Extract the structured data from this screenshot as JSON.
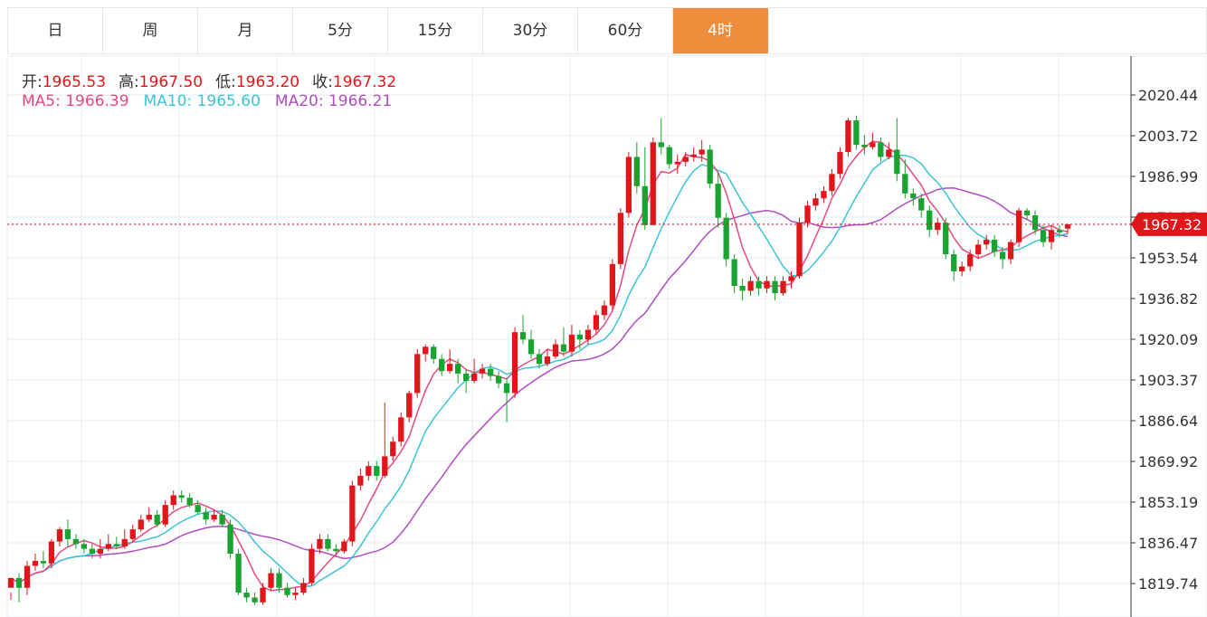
{
  "tabs": [
    {
      "label": "日",
      "active": false
    },
    {
      "label": "周",
      "active": false
    },
    {
      "label": "月",
      "active": false
    },
    {
      "label": "5分",
      "active": false
    },
    {
      "label": "15分",
      "active": false
    },
    {
      "label": "30分",
      "active": false
    },
    {
      "label": "60分",
      "active": false
    },
    {
      "label": "4时",
      "active": true
    }
  ],
  "info": {
    "open_label": "开:",
    "open": "1965.53",
    "high_label": "高:",
    "high": "1967.50",
    "low_label": "低:",
    "low": "1963.20",
    "close_label": "收:",
    "close": "1967.32",
    "ma5": "MA5: 1966.39",
    "ma10": "MA10: 1965.60",
    "ma20": "MA20: 1966.21"
  },
  "colors": {
    "up": "#e0161a",
    "down": "#1aa331",
    "ma5": "#e84a7f",
    "ma10": "#3cc4d6",
    "ma20": "#b04dc2",
    "accent": "#f08d3d",
    "grid": "#e6ecf2",
    "price_line": "#e0161a"
  },
  "chart_data": {
    "type": "candlestick",
    "title": "",
    "y_ticks": [
      "2020.44",
      "2003.72",
      "1986.99",
      "1970.27",
      "1953.54",
      "1936.82",
      "1920.09",
      "1903.37",
      "1886.64",
      "1869.92",
      "1853.19",
      "1836.47",
      "1819.74"
    ],
    "ylim": [
      1814,
      2030
    ],
    "last_price": "1967.32",
    "candles": [
      [
        1818,
        1822,
        1816,
        1813
      ],
      [
        1822,
        1818,
        1824,
        1812
      ],
      [
        1818,
        1827,
        1829,
        1815
      ],
      [
        1827,
        1829,
        1832,
        1825
      ],
      [
        1829,
        1828,
        1833,
        1826
      ],
      [
        1828,
        1837,
        1838,
        1826
      ],
      [
        1837,
        1842,
        1843,
        1835
      ],
      [
        1842,
        1838,
        1846,
        1835
      ],
      [
        1838,
        1836,
        1840,
        1834
      ],
      [
        1836,
        1834,
        1838,
        1832
      ],
      [
        1834,
        1832,
        1836,
        1830
      ],
      [
        1832,
        1834,
        1838,
        1830
      ],
      [
        1834,
        1836,
        1840,
        1833
      ],
      [
        1836,
        1835,
        1839,
        1834
      ],
      [
        1835,
        1838,
        1842,
        1834
      ],
      [
        1838,
        1842,
        1844,
        1837
      ],
      [
        1842,
        1846,
        1848,
        1841
      ],
      [
        1846,
        1848,
        1851,
        1845
      ],
      [
        1848,
        1844,
        1850,
        1843
      ],
      [
        1844,
        1852,
        1854,
        1843
      ],
      [
        1852,
        1856,
        1858,
        1850
      ],
      [
        1856,
        1855,
        1858,
        1853
      ],
      [
        1855,
        1852,
        1857,
        1851
      ],
      [
        1852,
        1849,
        1854,
        1848
      ],
      [
        1849,
        1846,
        1851,
        1844
      ],
      [
        1846,
        1848,
        1850,
        1845
      ],
      [
        1848,
        1844,
        1850,
        1843
      ],
      [
        1844,
        1832,
        1846,
        1830
      ],
      [
        1832,
        1816,
        1834,
        1815
      ],
      [
        1816,
        1814,
        1818,
        1812
      ],
      [
        1814,
        1812,
        1816,
        1811
      ],
      [
        1812,
        1818,
        1820,
        1811
      ],
      [
        1818,
        1824,
        1826,
        1817
      ],
      [
        1824,
        1818,
        1826,
        1816
      ],
      [
        1818,
        1815,
        1820,
        1814
      ],
      [
        1815,
        1816,
        1818,
        1813
      ],
      [
        1816,
        1820,
        1822,
        1815
      ],
      [
        1820,
        1834,
        1836,
        1819
      ],
      [
        1834,
        1838,
        1840,
        1832
      ],
      [
        1838,
        1834,
        1840,
        1833
      ],
      [
        1834,
        1833,
        1836,
        1831
      ],
      [
        1833,
        1837,
        1838,
        1832
      ],
      [
        1837,
        1860,
        1862,
        1835
      ],
      [
        1860,
        1864,
        1867,
        1858
      ],
      [
        1864,
        1868,
        1870,
        1862
      ],
      [
        1868,
        1864,
        1870,
        1862
      ],
      [
        1864,
        1872,
        1894,
        1863
      ],
      [
        1872,
        1878,
        1880,
        1870
      ],
      [
        1878,
        1888,
        1890,
        1876
      ],
      [
        1888,
        1898,
        1899,
        1886
      ],
      [
        1898,
        1914,
        1916,
        1896
      ],
      [
        1914,
        1917,
        1918,
        1911
      ],
      [
        1917,
        1912,
        1918,
        1910
      ],
      [
        1912,
        1907,
        1914,
        1905
      ],
      [
        1907,
        1910,
        1916,
        1906
      ],
      [
        1910,
        1906,
        1912,
        1902
      ],
      [
        1906,
        1903,
        1908,
        1898
      ],
      [
        1903,
        1906,
        1912,
        1902
      ],
      [
        1906,
        1908,
        1910,
        1904
      ],
      [
        1908,
        1905,
        1910,
        1903
      ],
      [
        1905,
        1902,
        1907,
        1900
      ],
      [
        1902,
        1898,
        1904,
        1886
      ],
      [
        1898,
        1923,
        1925,
        1896
      ],
      [
        1923,
        1920,
        1930,
        1918
      ],
      [
        1920,
        1914,
        1924,
        1912
      ],
      [
        1914,
        1910,
        1916,
        1908
      ],
      [
        1910,
        1913,
        1916,
        1909
      ],
      [
        1913,
        1918,
        1920,
        1912
      ],
      [
        1918,
        1915,
        1925,
        1913
      ],
      [
        1915,
        1922,
        1926,
        1913
      ],
      [
        1922,
        1920,
        1924,
        1916
      ],
      [
        1920,
        1924,
        1926,
        1918
      ],
      [
        1924,
        1930,
        1932,
        1922
      ],
      [
        1930,
        1934,
        1936,
        1928
      ],
      [
        1934,
        1951,
        1953,
        1932
      ],
      [
        1951,
        1972,
        1974,
        1949
      ],
      [
        1972,
        1995,
        1997,
        1970
      ],
      [
        1995,
        1983,
        2001,
        1980
      ],
      [
        1983,
        1967,
        1999,
        1965
      ],
      [
        1967,
        2001,
        2003,
        1968
      ],
      [
        2001,
        1999,
        2011,
        1996
      ],
      [
        1999,
        1992,
        2000,
        1990
      ],
      [
        1992,
        1993,
        1996,
        1988
      ],
      [
        1993,
        1995,
        1997,
        1991
      ],
      [
        1995,
        1996,
        1999,
        1993
      ],
      [
        1996,
        1998,
        2002,
        1993
      ],
      [
        1998,
        1984,
        2000,
        1982
      ],
      [
        1984,
        1970,
        1989,
        1966
      ],
      [
        1970,
        1953,
        1972,
        1950
      ],
      [
        1953,
        1942,
        1955,
        1939
      ],
      [
        1942,
        1940,
        1945,
        1936
      ],
      [
        1940,
        1944,
        1946,
        1938
      ],
      [
        1944,
        1941,
        1946,
        1938
      ],
      [
        1941,
        1944,
        1946,
        1939
      ],
      [
        1944,
        1939,
        1946,
        1936
      ],
      [
        1939,
        1944,
        1946,
        1938
      ],
      [
        1944,
        1946,
        1948,
        1941
      ],
      [
        1946,
        1968,
        1970,
        1945
      ],
      [
        1968,
        1975,
        1977,
        1966
      ],
      [
        1975,
        1978,
        1980,
        1973
      ],
      [
        1978,
        1981,
        1983,
        1976
      ],
      [
        1981,
        1988,
        1990,
        1979
      ],
      [
        1988,
        1997,
        1999,
        1986
      ],
      [
        1997,
        2010,
        2011,
        1995
      ],
      [
        2010,
        2000,
        2012,
        1998
      ],
      [
        2000,
        1999,
        2004,
        1996
      ],
      [
        1999,
        2001,
        2005,
        1998
      ],
      [
        2001,
        1995,
        2003,
        1993
      ],
      [
        1995,
        1998,
        2001,
        1994
      ],
      [
        1998,
        1988,
        2011,
        1985
      ],
      [
        1988,
        1980,
        1994,
        1978
      ],
      [
        1980,
        1978,
        1982,
        1975
      ],
      [
        1978,
        1973,
        1980,
        1970
      ],
      [
        1973,
        1965,
        1975,
        1962
      ],
      [
        1965,
        1968,
        1970,
        1963
      ],
      [
        1968,
        1955,
        1970,
        1953
      ],
      [
        1955,
        1948,
        1957,
        1944
      ],
      [
        1948,
        1950,
        1952,
        1946
      ],
      [
        1950,
        1955,
        1957,
        1948
      ],
      [
        1955,
        1959,
        1961,
        1953
      ],
      [
        1959,
        1961,
        1963,
        1957
      ],
      [
        1961,
        1956,
        1963,
        1954
      ],
      [
        1956,
        1953,
        1958,
        1949
      ],
      [
        1953,
        1960,
        1961,
        1951
      ],
      [
        1960,
        1973,
        1974,
        1958
      ],
      [
        1973,
        1971,
        1974,
        1969
      ],
      [
        1971,
        1965,
        1973,
        1963
      ],
      [
        1965,
        1960,
        1967,
        1958
      ],
      [
        1960,
        1965,
        1967,
        1957
      ],
      [
        1965,
        1964,
        1967,
        1962
      ],
      [
        1965.53,
        1967.32,
        1967.5,
        1963.2
      ]
    ]
  }
}
